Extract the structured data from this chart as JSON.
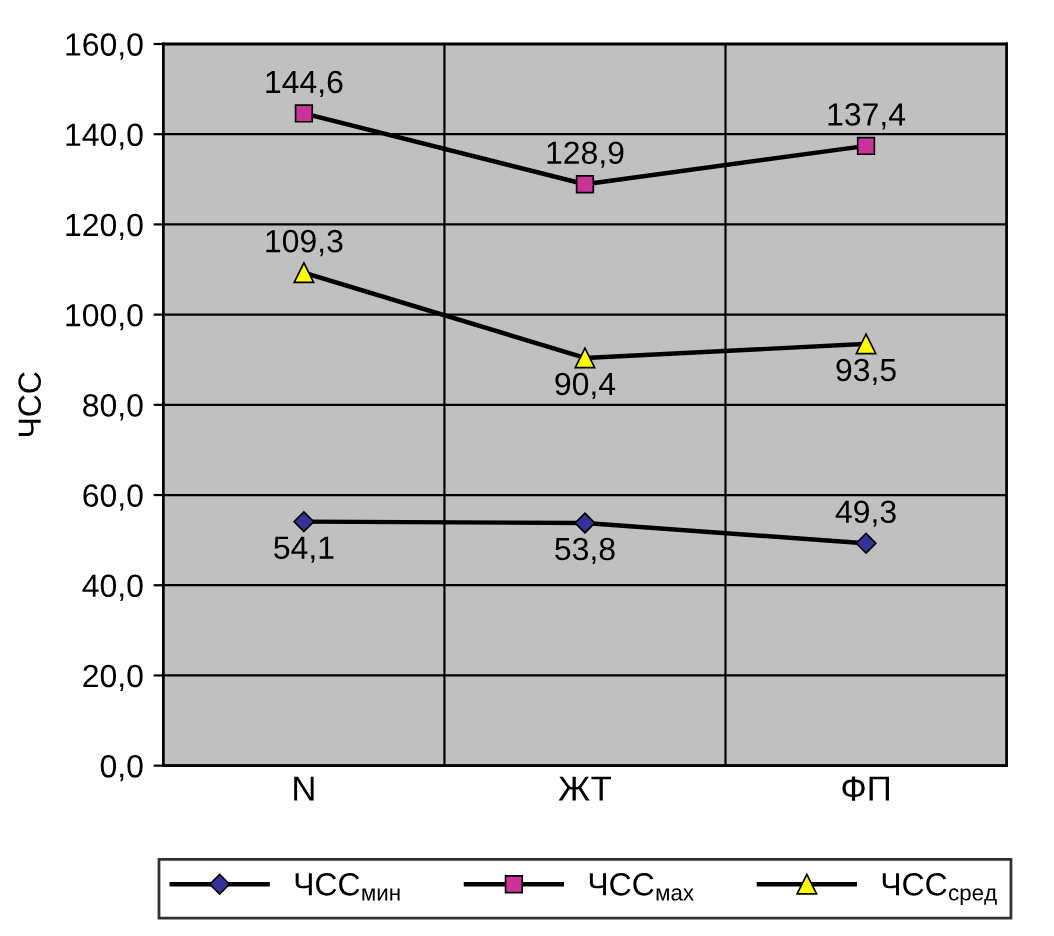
{
  "chart_data": {
    "type": "line",
    "ylabel": "ЧСС",
    "categories": [
      "N",
      "ЖТ",
      "ФП"
    ],
    "series": [
      {
        "name": "ЧСС$_{мин}$",
        "color": "#333399",
        "marker": "diamond",
        "values": [
          54.1,
          53.8,
          49.3
        ],
        "value_labels": [
          "54,1",
          "53,8",
          "49,3"
        ]
      },
      {
        "name": "ЧСС$_{мах}$",
        "color": "#cc3399",
        "marker": "square",
        "values": [
          144.6,
          128.9,
          137.4
        ],
        "value_labels": [
          "144,6",
          "128,9",
          "137,4"
        ]
      },
      {
        "name": "ЧСС$_{сред}$",
        "color": "#ffff00",
        "marker": "triangle",
        "values": [
          109.3,
          90.4,
          93.5
        ],
        "value_labels": [
          "109,3",
          "90,4",
          "93,5"
        ]
      }
    ],
    "ylim": [
      0,
      160
    ],
    "yticks": [
      {
        "value": 0,
        "label": "0,0"
      },
      {
        "value": 20,
        "label": "20,0"
      },
      {
        "value": 40,
        "label": "40,0"
      },
      {
        "value": 60,
        "label": "60,0"
      },
      {
        "value": 80,
        "label": "80,0"
      },
      {
        "value": 100,
        "label": "100,0"
      },
      {
        "value": 120,
        "label": "120,0"
      },
      {
        "value": 140,
        "label": "140,0"
      },
      {
        "value": 160,
        "label": "160,0"
      }
    ],
    "grid": true,
    "legend": "bottom",
    "line_style": "solid"
  }
}
